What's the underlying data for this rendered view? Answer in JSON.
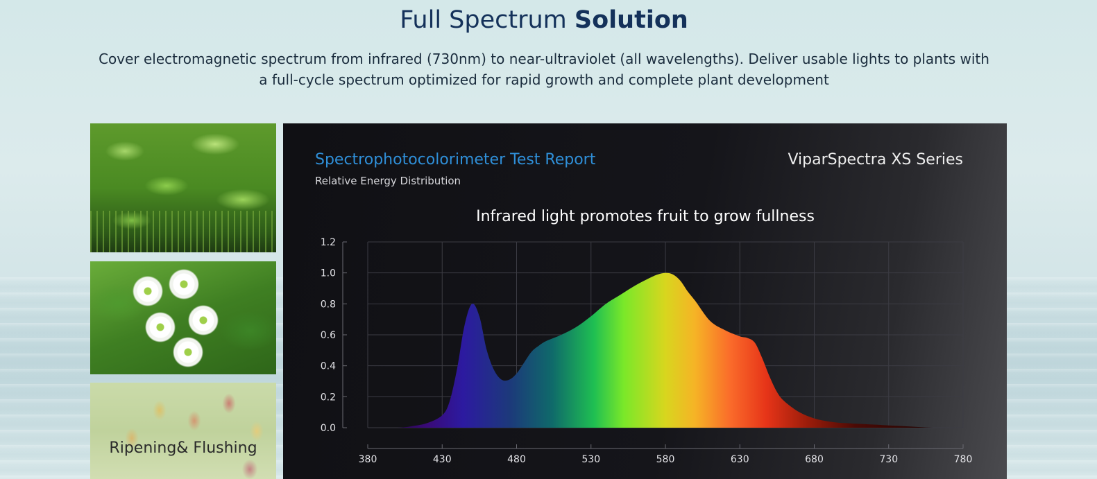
{
  "header": {
    "title_regular": "Full Spectrum",
    "title_bold": "Solution",
    "subtitle": "Cover electromagnetic spectrum from infrared (730nm) to near-ultraviolet (all wavelengths). Deliver usable lights to plants with a full-cycle spectrum optimized for rapid growth and complete plant development"
  },
  "photos": {
    "seedlings": "seedlings-photo",
    "flowers": "flowers-photo",
    "peppers": "peppers-photo",
    "peppers_caption": "Ripening& Flushing"
  },
  "report": {
    "title": "Spectrophotocolorimeter Test Report",
    "subtitle": "Relative Energy Distribution",
    "brand": "ViparSpectra XS Series",
    "title_color": "#2f8fd8"
  },
  "chart_data": {
    "type": "area",
    "title": "Infrared light promotes fruit to grow fullness",
    "xlabel": "",
    "ylabel": "",
    "xlim": [
      380,
      780
    ],
    "ylim": [
      0,
      1.2
    ],
    "grid": true,
    "x_ticks": [
      "380",
      "430",
      "480",
      "530",
      "580",
      "630",
      "680",
      "730",
      "780"
    ],
    "y_ticks": [
      "1.2",
      "1.0",
      "0.8",
      "0.6",
      "0.4",
      "0.2",
      "0.0"
    ],
    "x": [
      380,
      400,
      410,
      420,
      430,
      435,
      440,
      445,
      450,
      455,
      460,
      465,
      470,
      475,
      480,
      485,
      490,
      495,
      500,
      510,
      520,
      530,
      540,
      550,
      560,
      570,
      575,
      580,
      585,
      590,
      595,
      600,
      610,
      620,
      630,
      635,
      640,
      645,
      650,
      655,
      660,
      670,
      680,
      690,
      700,
      720,
      740,
      760,
      780
    ],
    "y": [
      0.0,
      0.0,
      0.01,
      0.03,
      0.08,
      0.17,
      0.38,
      0.66,
      0.8,
      0.72,
      0.5,
      0.37,
      0.31,
      0.31,
      0.35,
      0.42,
      0.49,
      0.53,
      0.56,
      0.6,
      0.65,
      0.72,
      0.8,
      0.86,
      0.92,
      0.97,
      0.99,
      1.0,
      0.99,
      0.95,
      0.88,
      0.82,
      0.69,
      0.63,
      0.59,
      0.58,
      0.55,
      0.45,
      0.33,
      0.23,
      0.17,
      0.1,
      0.06,
      0.04,
      0.03,
      0.02,
      0.01,
      0.0,
      0.0
    ]
  }
}
